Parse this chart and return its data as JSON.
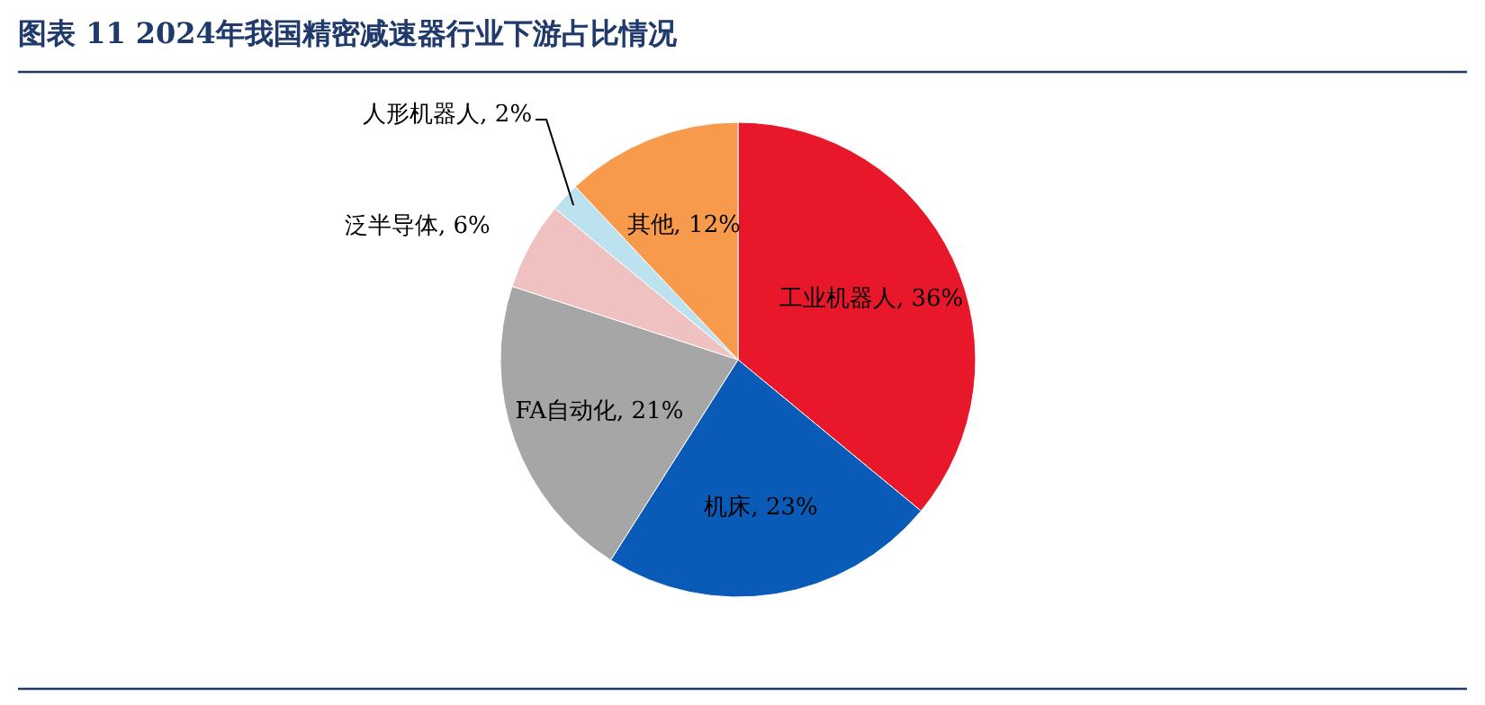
{
  "chart_data": {
    "type": "pie",
    "title": "图表 11   2024年我国精密减速器行业下游占比情况",
    "categories": [
      "工业机器人",
      "机床",
      "FA自动化",
      "泛半导体",
      "人形机器人",
      "其他"
    ],
    "values": [
      36,
      23,
      21,
      6,
      2,
      12
    ],
    "colors": [
      "#e8182a",
      "#0a5bb8",
      "#a6a6a6",
      "#efc1c1",
      "#bde2ef",
      "#f89a4c"
    ],
    "value_labels": [
      ", 36%",
      ", 23%",
      ", 21%",
      ", 6%",
      ", 2%",
      ", 12%"
    ]
  }
}
